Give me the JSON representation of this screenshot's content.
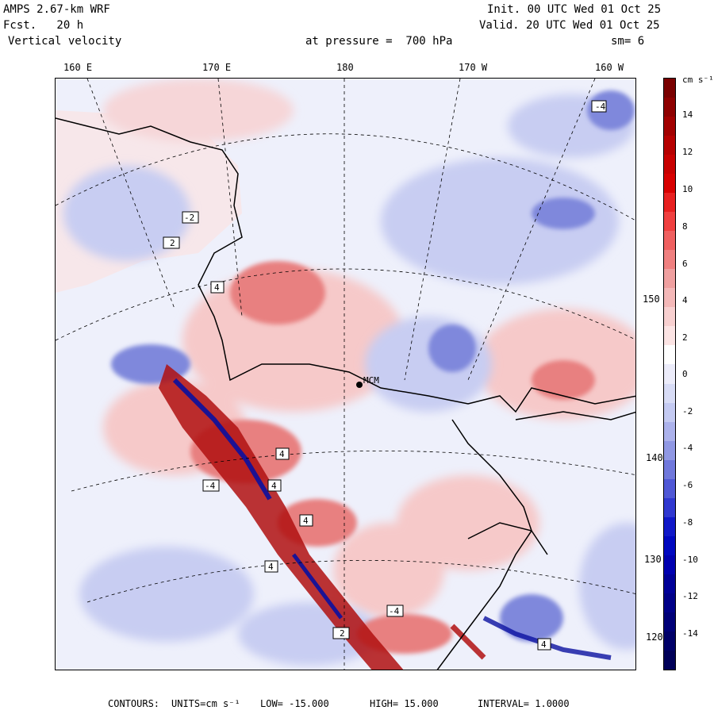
{
  "header": {
    "model": "AMPS 2.67-km WRF",
    "forecast": "Fcst.   20 h",
    "field": "Vertical velocity",
    "init": "Init. 00 UTC Wed 01 Oct 25",
    "valid": "Valid. 20 UTC Wed 01 Oct 25",
    "pressure": "at pressure =  700 hPa",
    "smoothing": "sm= 6"
  },
  "map": {
    "lon_labels": [
      "160 E",
      "170 E",
      "180",
      "170 W",
      "160 W"
    ],
    "lat_labels": [
      "150 W",
      "140 W",
      "130 W",
      "120 W"
    ],
    "station_label": "MCM",
    "contour_labels": [
      "-4",
      "-2",
      "2",
      "4",
      "4",
      "4",
      "4",
      "-4",
      "-4",
      "4",
      "2",
      "4"
    ],
    "colors": {
      "background": "#eef0fb",
      "positive_light": "#f6c9c9",
      "positive_mid": "#e88080",
      "positive_strong": "#b01010",
      "negative_light": "#c8cdf2",
      "negative_mid": "#7f88dc",
      "negative_strong": "#0a10a0"
    }
  },
  "colorbar": {
    "units": "cm s⁻¹",
    "ticks": [
      "14",
      "12",
      "10",
      "8",
      "6",
      "4",
      "2",
      "0",
      "-2",
      "-4",
      "-6",
      "-8",
      "-10",
      "-12",
      "-14"
    ],
    "segments": [
      "#7a0000",
      "#8e0000",
      "#a20000",
      "#b60000",
      "#c80000",
      "#d80000",
      "#e82020",
      "#f04040",
      "#f06060",
      "#f08080",
      "#f0a0a0",
      "#f4b8b8",
      "#f8d0d0",
      "#fce4e4",
      "#ffffff",
      "#ececfa",
      "#d8dcf6",
      "#c4caf2",
      "#acb2ec",
      "#9098e4",
      "#7078dc",
      "#5058d6",
      "#3038d0",
      "#1018c8",
      "#0008c0",
      "#0000b0",
      "#000098",
      "#000088",
      "#000078",
      "#000068",
      "#000058"
    ]
  },
  "footer": {
    "contours": "CONTOURS:",
    "units": "UNITS=cm s⁻¹",
    "low": "LOW= -15.000",
    "high": "HIGH=  15.000",
    "interval": "INTERVAL=   1.0000"
  }
}
